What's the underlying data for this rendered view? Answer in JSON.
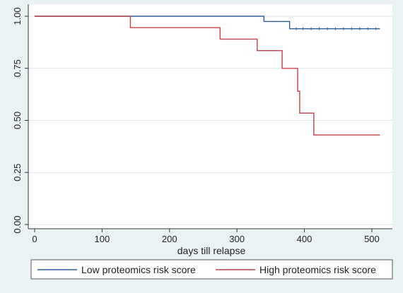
{
  "chart_data": {
    "type": "line",
    "step": true,
    "xlabel": "days till relapse",
    "ylabel": "",
    "xlim": [
      0,
      520
    ],
    "ylim": [
      0,
      1
    ],
    "xticks": [
      0,
      100,
      200,
      300,
      400,
      500
    ],
    "xtick_labels": [
      "0",
      "100",
      "200",
      "300",
      "400",
      "500"
    ],
    "yticks": [
      0,
      0.25,
      0.5,
      0.75,
      1
    ],
    "ytick_labels": [
      "0.00",
      "0.25",
      "0.50",
      "0.75",
      "1.00"
    ],
    "grid": "horizontal",
    "legend": "bottom",
    "series": [
      {
        "name": "Low proteomics risk score",
        "color": "#2f5f9b",
        "x": [
          0,
          340,
          340,
          378,
          378,
          512
        ],
        "y": [
          1.0,
          1.0,
          0.975,
          0.975,
          0.94,
          0.94
        ],
        "censor_x": [
          388,
          398,
          410,
          422,
          434,
          446,
          458,
          470,
          482,
          494,
          506
        ]
      },
      {
        "name": "High proteomics risk score",
        "color": "#c4414b",
        "x": [
          0,
          142,
          142,
          275,
          275,
          330,
          330,
          367,
          367,
          390,
          390,
          393,
          393,
          414,
          414,
          512
        ],
        "y": [
          1.0,
          1.0,
          0.945,
          0.945,
          0.89,
          0.89,
          0.835,
          0.835,
          0.75,
          0.75,
          0.64,
          0.64,
          0.535,
          0.535,
          0.43,
          0.43
        ]
      }
    ]
  }
}
